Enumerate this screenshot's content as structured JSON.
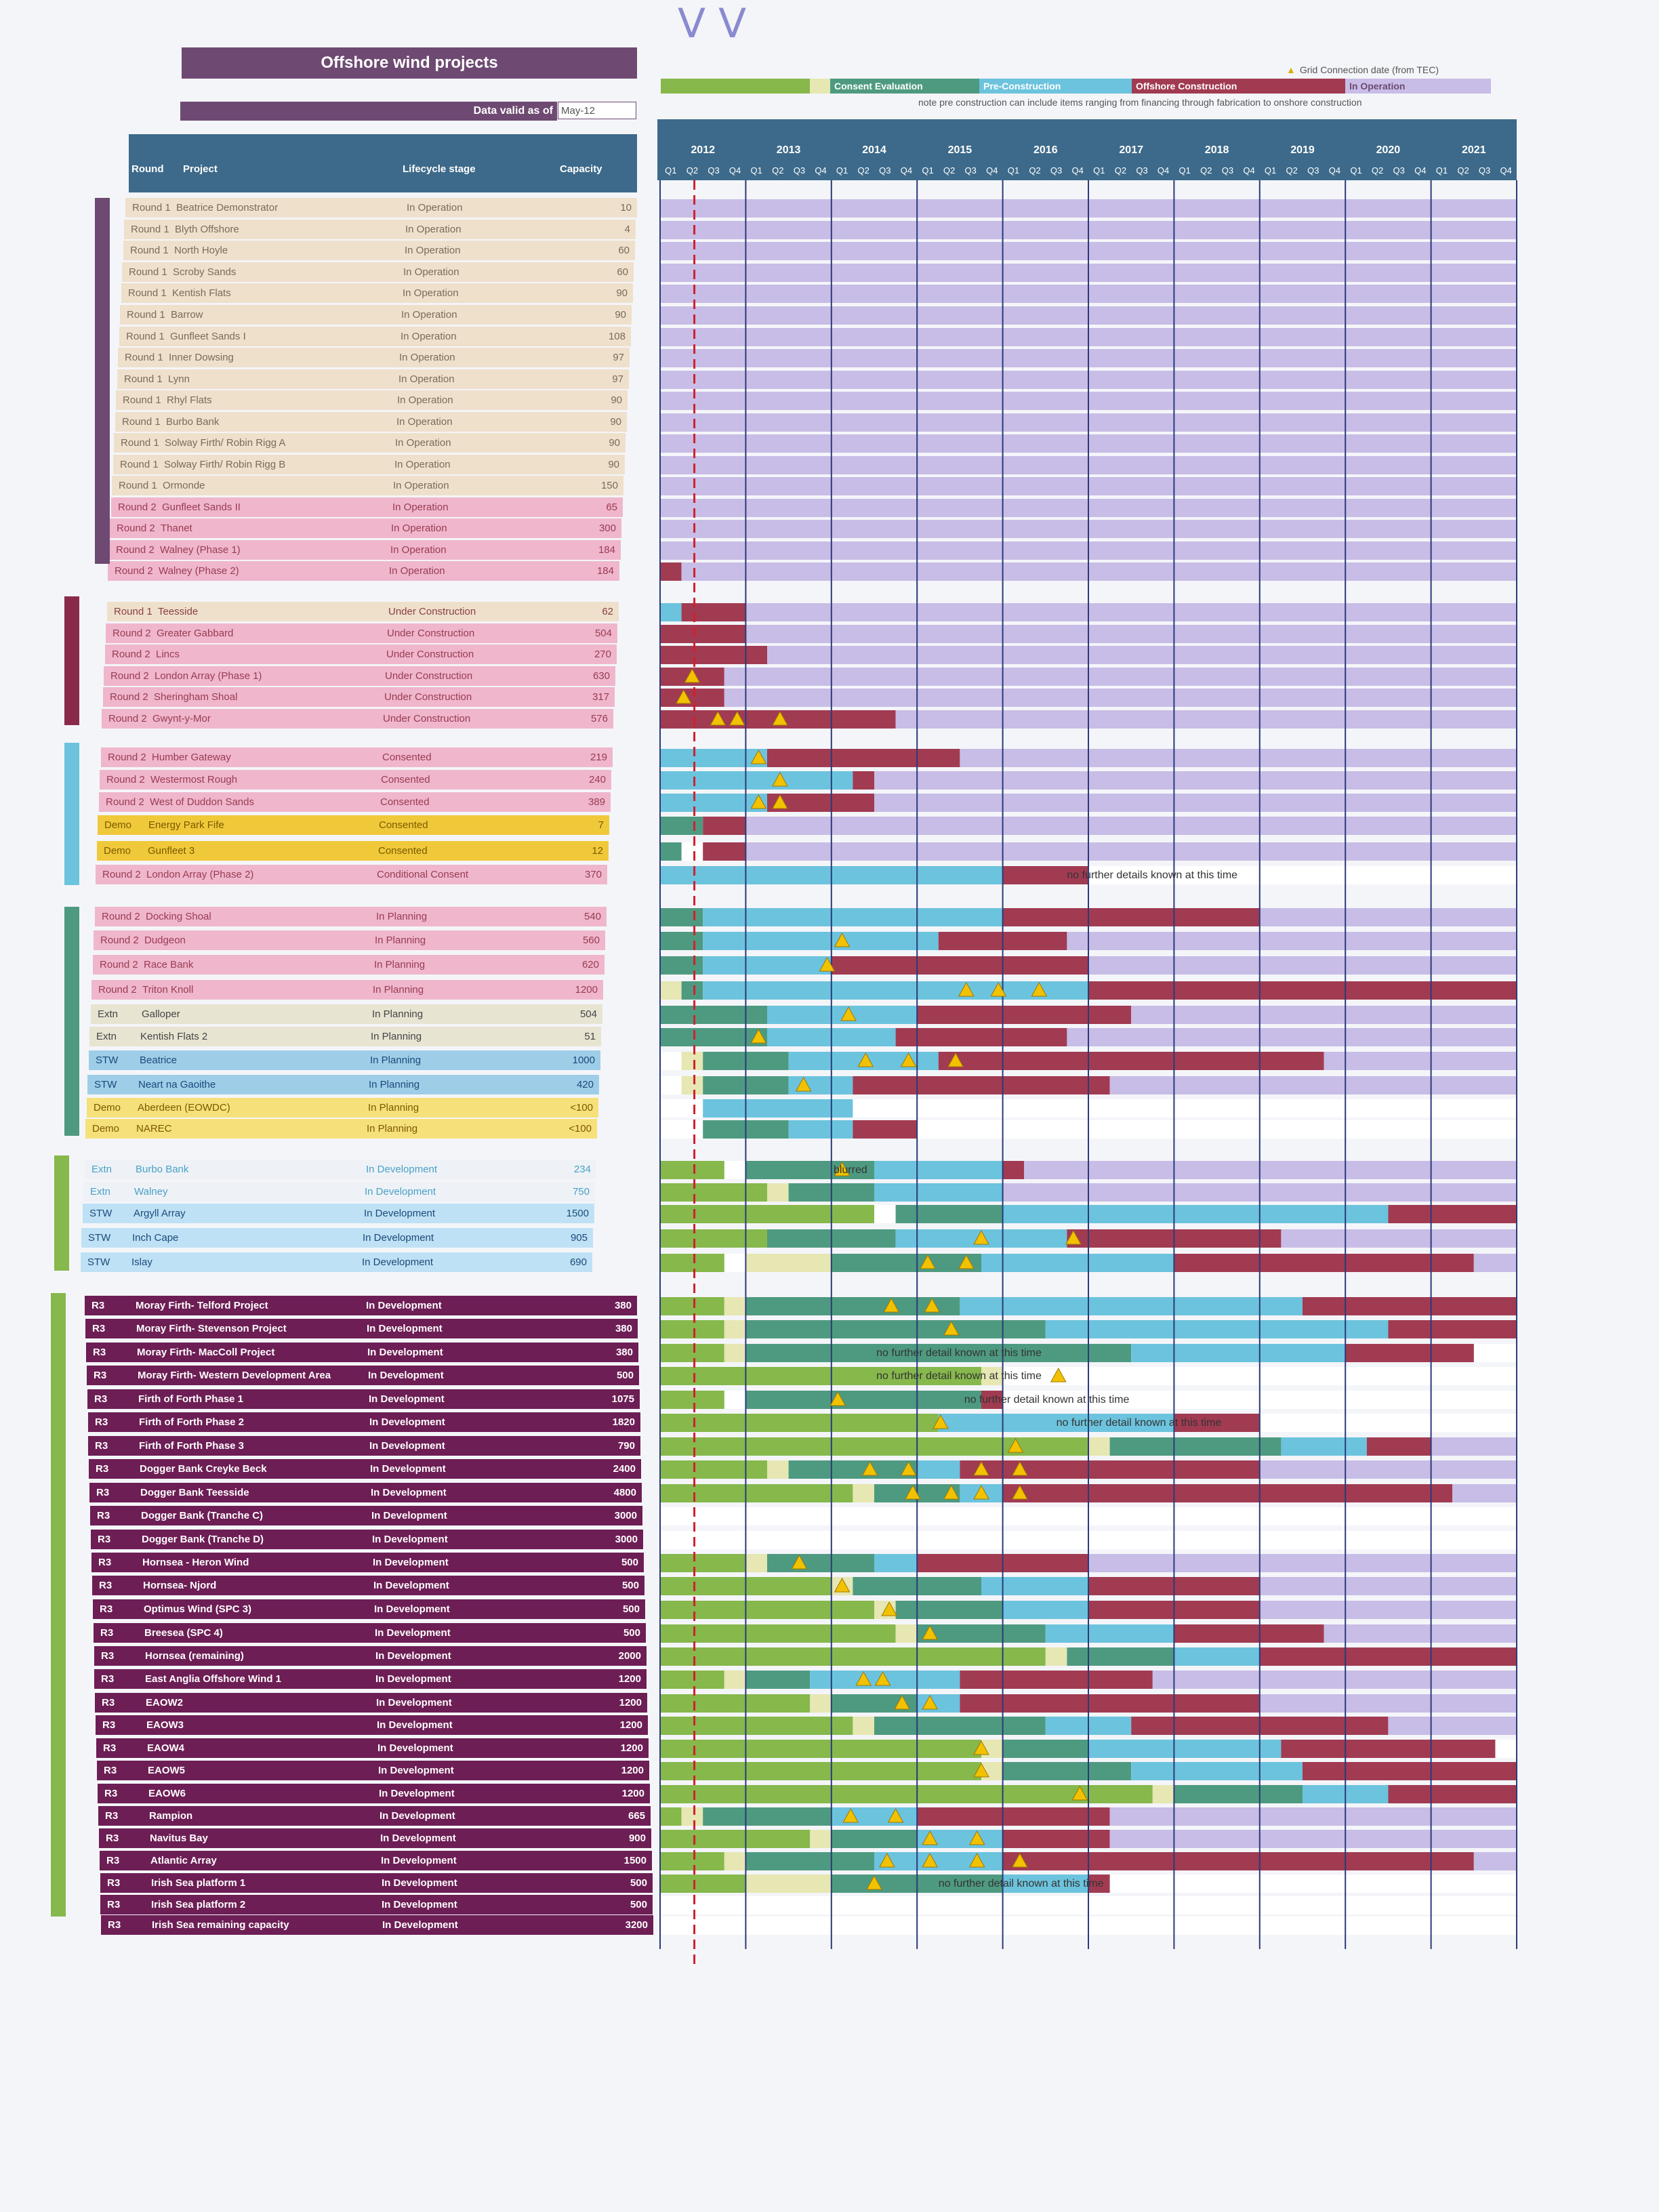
{
  "title": "Offshore wind projects",
  "data_valid": {
    "label": "Data valid as of",
    "value": "May-12"
  },
  "columns": {
    "round": "Round",
    "project": "Project",
    "lifecycle": "Lifecycle stage",
    "capacity": "Capacity"
  },
  "legend": {
    "consent": "Consent Evaluation",
    "pre": "Pre-Construction",
    "offshore": "Offshore Construction",
    "operation": "In Operation",
    "grid": "Grid Connection date (from TEC)",
    "note": "note pre construction can include items ranging from financing through fabrication to onshore construction"
  },
  "colors": {
    "planning": "#86b84c",
    "consent": "#e6e7b2",
    "eval": "#4e9a80",
    "pre": "#6cc3dd",
    "construction": "#a13b52",
    "operation": "#c8bde6",
    "purple": "#6e4a72",
    "round1": "#efe0cc",
    "round2": "#efb6cc",
    "demo": "#f0c93a",
    "extn": "#e8e4d2",
    "stw": "#9ecde8",
    "stwdark": "#6f9fca",
    "r3": "#6d1e55"
  },
  "years": [
    "2012",
    "2013",
    "2014",
    "2015",
    "2016",
    "2017",
    "2018",
    "2019",
    "2020",
    "2021"
  ],
  "quarters": [
    "Q1",
    "Q2",
    "Q3",
    "Q4"
  ],
  "notes": [
    "no further details known at this time",
    "no further detail known at this time",
    "blurred"
  ],
  "projects": [
    {
      "round": "Round 1",
      "project": "Beatrice Demonstrator",
      "stage": "In Operation",
      "capacity": "10"
    },
    {
      "round": "Round 1",
      "project": "Blyth Offshore",
      "stage": "In Operation",
      "capacity": "4"
    },
    {
      "round": "Round 1",
      "project": "North Hoyle",
      "stage": "In Operation",
      "capacity": "60"
    },
    {
      "round": "Round 1",
      "project": "Scroby Sands",
      "stage": "In Operation",
      "capacity": "60"
    },
    {
      "round": "Round 1",
      "project": "Kentish Flats",
      "stage": "In Operation",
      "capacity": "90"
    },
    {
      "round": "Round 1",
      "project": "Barrow",
      "stage": "In Operation",
      "capacity": "90"
    },
    {
      "round": "Round 1",
      "project": "Gunfleet Sands I",
      "stage": "In Operation",
      "capacity": "108"
    },
    {
      "round": "Round 1",
      "project": "Inner Dowsing",
      "stage": "In Operation",
      "capacity": "97"
    },
    {
      "round": "Round 1",
      "project": "Lynn",
      "stage": "In Operation",
      "capacity": "97"
    },
    {
      "round": "Round 1",
      "project": "Rhyl Flats",
      "stage": "In Operation",
      "capacity": "90"
    },
    {
      "round": "Round 1",
      "project": "Burbo Bank",
      "stage": "In Operation",
      "capacity": "90"
    },
    {
      "round": "Round 1",
      "project": "Solway Firth/ Robin Rigg A",
      "stage": "In Operation",
      "capacity": "90"
    },
    {
      "round": "Round 1",
      "project": "Solway Firth/ Robin Rigg B",
      "stage": "In Operation",
      "capacity": "90"
    },
    {
      "round": "Round 1",
      "project": "Ormonde",
      "stage": "In Operation",
      "capacity": "150"
    },
    {
      "round": "Round 2",
      "project": "Gunfleet Sands II",
      "stage": "In Operation",
      "capacity": "65"
    },
    {
      "round": "Round 2",
      "project": "Thanet",
      "stage": "In Operation",
      "capacity": "300"
    },
    {
      "round": "Round 2",
      "project": "Walney (Phase 1)",
      "stage": "In Operation",
      "capacity": "184"
    },
    {
      "round": "Round 2",
      "project": "Walney (Phase 2)",
      "stage": "In Operation",
      "capacity": "184"
    },
    {
      "round": "Round 1",
      "project": "Teesside",
      "stage": "Under Construction",
      "capacity": "62"
    },
    {
      "round": "Round 2",
      "project": "Greater Gabbard",
      "stage": "Under Construction",
      "capacity": "504"
    },
    {
      "round": "Round 2",
      "project": "Lincs",
      "stage": "Under Construction",
      "capacity": "270"
    },
    {
      "round": "Round 2",
      "project": "London Array (Phase 1)",
      "stage": "Under Construction",
      "capacity": "630"
    },
    {
      "round": "Round 2",
      "project": "Sheringham Shoal",
      "stage": "Under Construction",
      "capacity": "317"
    },
    {
      "round": "Round 2",
      "project": "Gwynt-y-Mor",
      "stage": "Under Construction",
      "capacity": "576"
    },
    {
      "round": "Round 2",
      "project": "Humber Gateway",
      "stage": "Consented",
      "capacity": "219"
    },
    {
      "round": "Round 2",
      "project": "Westermost Rough",
      "stage": "Consented",
      "capacity": "240"
    },
    {
      "round": "Round 2",
      "project": "West of Duddon Sands",
      "stage": "Consented",
      "capacity": "389"
    },
    {
      "round": "Demo",
      "project": "Energy Park Fife",
      "stage": "Consented",
      "capacity": "7"
    },
    {
      "round": "Demo",
      "project": "Gunfleet 3",
      "stage": "Consented",
      "capacity": "12"
    },
    {
      "round": "Round 2",
      "project": "London Array (Phase 2)",
      "stage": "Conditional Consent",
      "capacity": "370"
    },
    {
      "round": "Round 2",
      "project": "Docking Shoal",
      "stage": "In Planning",
      "capacity": "540"
    },
    {
      "round": "Round 2",
      "project": "Dudgeon",
      "stage": "In Planning",
      "capacity": "560"
    },
    {
      "round": "Round 2",
      "project": "Race Bank",
      "stage": "In Planning",
      "capacity": "620"
    },
    {
      "round": "Round 2",
      "project": "Triton Knoll",
      "stage": "In Planning",
      "capacity": "1200"
    },
    {
      "round": "Extn",
      "project": "Galloper",
      "stage": "In Planning",
      "capacity": "504"
    },
    {
      "round": "Extn",
      "project": "Kentish Flats 2",
      "stage": "In Planning",
      "capacity": "51"
    },
    {
      "round": "STW",
      "project": "Beatrice",
      "stage": "In Planning",
      "capacity": "1000"
    },
    {
      "round": "STW",
      "project": "Neart na Gaoithe",
      "stage": "In Planning",
      "capacity": "420"
    },
    {
      "round": "Demo",
      "project": "Aberdeen (EOWDC)",
      "stage": "In Planning",
      "capacity": "<100"
    },
    {
      "round": "Demo",
      "project": "NAREC",
      "stage": "In Planning",
      "capacity": "<100"
    },
    {
      "round": "Extn",
      "project": "Burbo Bank",
      "stage": "In Development",
      "capacity": "234"
    },
    {
      "round": "Extn",
      "project": "Walney",
      "stage": "In Development",
      "capacity": "750"
    },
    {
      "round": "STW",
      "project": "Argyll Array",
      "stage": "In Development",
      "capacity": "1500"
    },
    {
      "round": "STW",
      "project": "Inch Cape",
      "stage": "In Development",
      "capacity": "905"
    },
    {
      "round": "STW",
      "project": "Islay",
      "stage": "In Development",
      "capacity": "690"
    },
    {
      "round": "R3",
      "project": "Moray Firth- Telford Project",
      "stage": "In Development",
      "capacity": "380"
    },
    {
      "round": "R3",
      "project": "Moray Firth- Stevenson Project",
      "stage": "In Development",
      "capacity": "380"
    },
    {
      "round": "R3",
      "project": "Moray Firth- MacColl Project",
      "stage": "In Development",
      "capacity": "380"
    },
    {
      "round": "R3",
      "project": "Moray Firth- Western Development Area",
      "stage": "In Development",
      "capacity": "500"
    },
    {
      "round": "R3",
      "project": "Firth of Forth Phase 1",
      "stage": "In Development",
      "capacity": "1075"
    },
    {
      "round": "R3",
      "project": "Firth of Forth Phase 2",
      "stage": "In Development",
      "capacity": "1820"
    },
    {
      "round": "R3",
      "project": "Firth of Forth Phase 3",
      "stage": "In Development",
      "capacity": "790"
    },
    {
      "round": "R3",
      "project": "Dogger Bank Creyke Beck",
      "stage": "In Development",
      "capacity": "2400"
    },
    {
      "round": "R3",
      "project": "Dogger Bank Teesside",
      "stage": "In Development",
      "capacity": "4800"
    },
    {
      "round": "R3",
      "project": "Dogger Bank (Tranche C)",
      "stage": "In Development",
      "capacity": "3000"
    },
    {
      "round": "R3",
      "project": "Dogger Bank (Tranche D)",
      "stage": "In Development",
      "capacity": "3000"
    },
    {
      "round": "R3",
      "project": "Hornsea - Heron Wind",
      "stage": "In Development",
      "capacity": "500"
    },
    {
      "round": "R3",
      "project": "Hornsea- Njord",
      "stage": "In Development",
      "capacity": "500"
    },
    {
      "round": "R3",
      "project": "Optimus Wind (SPC 3)",
      "stage": "In Development",
      "capacity": "500"
    },
    {
      "round": "R3",
      "project": "Breesea (SPC 4)",
      "stage": "In Development",
      "capacity": "500"
    },
    {
      "round": "R3",
      "project": "Hornsea (remaining)",
      "stage": "In Development",
      "capacity": "2000"
    },
    {
      "round": "R3",
      "project": "East Anglia Offshore Wind 1",
      "stage": "In Development",
      "capacity": "1200"
    },
    {
      "round": "R3",
      "project": "EAOW2",
      "stage": "In Development",
      "capacity": "1200"
    },
    {
      "round": "R3",
      "project": "EAOW3",
      "stage": "In Development",
      "capacity": "1200"
    },
    {
      "round": "R3",
      "project": "EAOW4",
      "stage": "In Development",
      "capacity": "1200"
    },
    {
      "round": "R3",
      "project": "EAOW5",
      "stage": "In Development",
      "capacity": "1200"
    },
    {
      "round": "R3",
      "project": "EAOW6",
      "stage": "In Development",
      "capacity": "1200"
    },
    {
      "round": "R3",
      "project": "Rampion",
      "stage": "In Development",
      "capacity": "665"
    },
    {
      "round": "R3",
      "project": "Navitus Bay",
      "stage": "In Development",
      "capacity": "900"
    },
    {
      "round": "R3",
      "project": "Atlantic Array",
      "stage": "In Development",
      "capacity": "1500"
    },
    {
      "round": "R3",
      "project": "Irish Sea platform 1",
      "stage": "In Development",
      "capacity": "500"
    },
    {
      "round": "R3",
      "project": "Irish Sea platform 2",
      "stage": "In Development",
      "capacity": "500"
    },
    {
      "round": "R3",
      "project": "Irish Sea remaining capacity",
      "stage": "In Development",
      "capacity": "3200"
    }
  ]
}
